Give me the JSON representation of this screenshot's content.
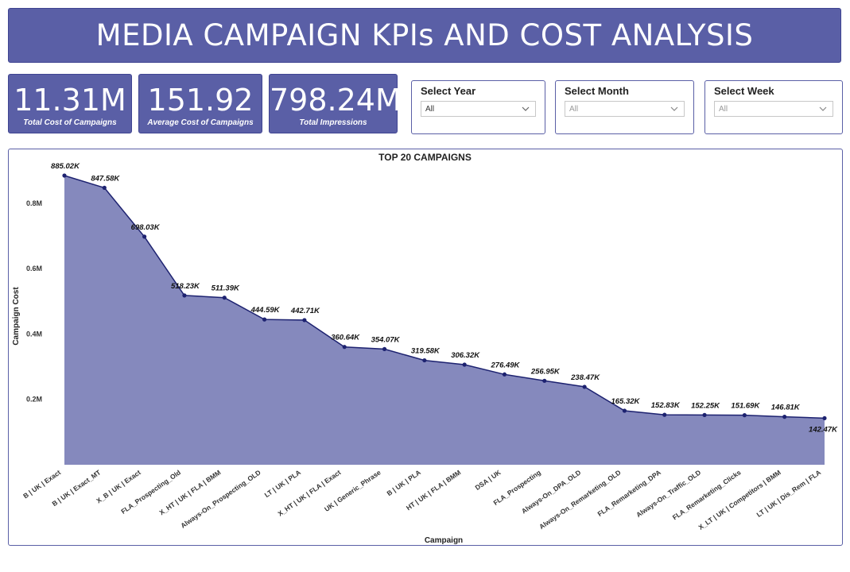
{
  "header": {
    "title": "MEDIA CAMPAIGN KPIs AND COST ANALYSIS"
  },
  "kpis": [
    {
      "value": "11.31M",
      "label": "Total Cost of Campaigns"
    },
    {
      "value": "151.92",
      "label": "Average Cost of Campaigns"
    },
    {
      "value": "798.24M",
      "label": "Total Impressions"
    }
  ],
  "slicers": [
    {
      "title": "Select Year",
      "value": "All",
      "icon": "chevron-down-icon"
    },
    {
      "title": "Select Month",
      "value": "All",
      "icon": "chevron-down-icon"
    },
    {
      "title": "Select Week",
      "value": "All",
      "icon": "chevron-down-icon"
    }
  ],
  "colors": {
    "accent": "#5a5fa6",
    "area_fill": "#8589bd",
    "line": "#1d2270"
  },
  "chart_data": {
    "type": "area",
    "title": "TOP 20 CAMPAIGNS",
    "xlabel": "Campaign",
    "ylabel": "Campaign Cost",
    "ylim": [
      0,
      0.885
    ],
    "yticks": [
      0.2,
      0.4,
      0.6,
      0.8
    ],
    "ytick_labels": [
      "0.2M",
      "0.4M",
      "0.6M",
      "0.8M"
    ],
    "categories": [
      "B | UK | Exact",
      "B | UK | Exact_MT",
      "X_B | UK | Exact",
      "FLA_Prospecting_Old",
      "X_HT | UK | FLA | BMM",
      "Always-On_Prospecting_OLD",
      "LT | UK | PLA",
      "X_HT | UK | FLA | Exact",
      "UK | Generic_Phrase",
      "B | UK | PLA",
      "HT | UK | FLA | BMM",
      "DSA | UK",
      "FLA_Prospecting",
      "Always-On_DPA_OLD",
      "Always-On_Remarketing_OLD",
      "FLA_Remarketing_DPA",
      "Always-On_Traffic_OLD",
      "FLA_Remarketing_Clicks",
      "X_LT | UK | Competitors | BMM",
      "LT | UK | Dis_Rem | FLA"
    ],
    "values": [
      885.02,
      847.58,
      698.03,
      518.23,
      511.39,
      444.59,
      442.71,
      360.64,
      354.07,
      319.58,
      306.32,
      276.49,
      256.95,
      238.47,
      165.32,
      152.83,
      152.25,
      151.69,
      146.81,
      142.47
    ],
    "value_unit": "K",
    "data_labels": [
      "885.02K",
      "847.58K",
      "698.03K",
      "518.23K",
      "511.39K",
      "444.59K",
      "442.71K",
      "360.64K",
      "354.07K",
      "319.58K",
      "306.32K",
      "276.49K",
      "256.95K",
      "238.47K",
      "165.32K",
      "152.83K",
      "152.25K",
      "151.69K",
      "146.81K",
      "142.47K"
    ],
    "grid": false,
    "legend": "none"
  }
}
